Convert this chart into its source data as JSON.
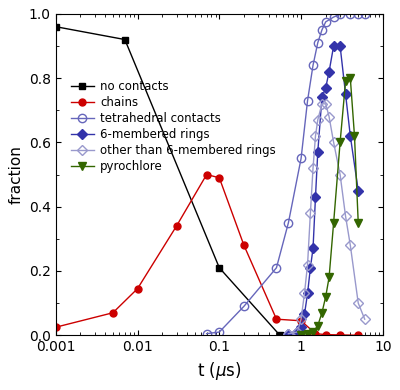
{
  "title": "",
  "xlabel": "t ($\\mu$s)",
  "ylabel": "fraction",
  "xlim": [
    0.001,
    10
  ],
  "ylim": [
    0,
    1.0
  ],
  "background_color": "#ffffff",
  "no_contacts": {
    "x": [
      0.001,
      0.007,
      0.1,
      0.55
    ],
    "y": [
      0.96,
      0.92,
      0.21,
      0.0
    ],
    "color": "#000000",
    "marker": "s",
    "markersize": 5,
    "label": "no contacts",
    "linestyle": "-"
  },
  "chains": {
    "x": [
      0.001,
      0.005,
      0.01,
      0.03,
      0.07,
      0.1,
      0.2,
      0.5,
      1.0,
      1.5,
      2.0,
      3.0,
      5.0
    ],
    "y": [
      0.025,
      0.07,
      0.145,
      0.34,
      0.5,
      0.49,
      0.28,
      0.05,
      0.045,
      0.005,
      0.002,
      0.001,
      0.0
    ],
    "color": "#cc0000",
    "marker": "o",
    "markersize": 5,
    "label": "chains",
    "linestyle": "-"
  },
  "tetrahedral": {
    "x": [
      0.07,
      0.1,
      0.2,
      0.5,
      0.7,
      1.0,
      1.2,
      1.4,
      1.6,
      1.8,
      2.0,
      2.5,
      3.0,
      4.0,
      5.0,
      6.0
    ],
    "y": [
      0.005,
      0.01,
      0.09,
      0.21,
      0.35,
      0.55,
      0.73,
      0.84,
      0.91,
      0.95,
      0.975,
      0.99,
      0.998,
      1.0,
      1.0,
      1.0
    ],
    "color": "#6666bb",
    "marker": "o",
    "markersize": 6,
    "label": "tetrahedral contacts",
    "linestyle": "-",
    "fillstyle": "none"
  },
  "six_membered": {
    "x": [
      0.7,
      0.9,
      1.0,
      1.1,
      1.2,
      1.3,
      1.4,
      1.5,
      1.6,
      1.8,
      2.0,
      2.2,
      2.5,
      3.0,
      3.5,
      4.0,
      5.0
    ],
    "y": [
      0.005,
      0.01,
      0.025,
      0.065,
      0.13,
      0.21,
      0.27,
      0.43,
      0.57,
      0.74,
      0.77,
      0.82,
      0.9,
      0.9,
      0.75,
      0.62,
      0.45
    ],
    "color": "#3333aa",
    "marker": "D",
    "markersize": 5,
    "label": "6-membered rings",
    "linestyle": "-"
  },
  "other_rings": {
    "x": [
      0.7,
      0.9,
      1.0,
      1.1,
      1.2,
      1.3,
      1.4,
      1.5,
      1.6,
      1.8,
      2.0,
      2.2,
      2.5,
      3.0,
      3.5,
      4.0,
      5.0,
      6.0
    ],
    "y": [
      0.005,
      0.01,
      0.05,
      0.13,
      0.22,
      0.38,
      0.52,
      0.62,
      0.67,
      0.72,
      0.72,
      0.68,
      0.6,
      0.5,
      0.37,
      0.28,
      0.1,
      0.05
    ],
    "color": "#9999cc",
    "marker": "D",
    "markersize": 5,
    "label": "other than 6-membered rings",
    "linestyle": "-",
    "fillstyle": "none"
  },
  "pyrochlore": {
    "x": [
      1.0,
      1.2,
      1.4,
      1.6,
      1.8,
      2.0,
      2.2,
      2.5,
      3.0,
      3.5,
      4.0,
      4.5,
      5.0
    ],
    "y": [
      0.002,
      0.005,
      0.01,
      0.03,
      0.07,
      0.12,
      0.18,
      0.35,
      0.6,
      0.79,
      0.8,
      0.62,
      0.35
    ],
    "color": "#336600",
    "marker": "v",
    "markersize": 6,
    "label": "pyrochlore",
    "linestyle": "-"
  }
}
